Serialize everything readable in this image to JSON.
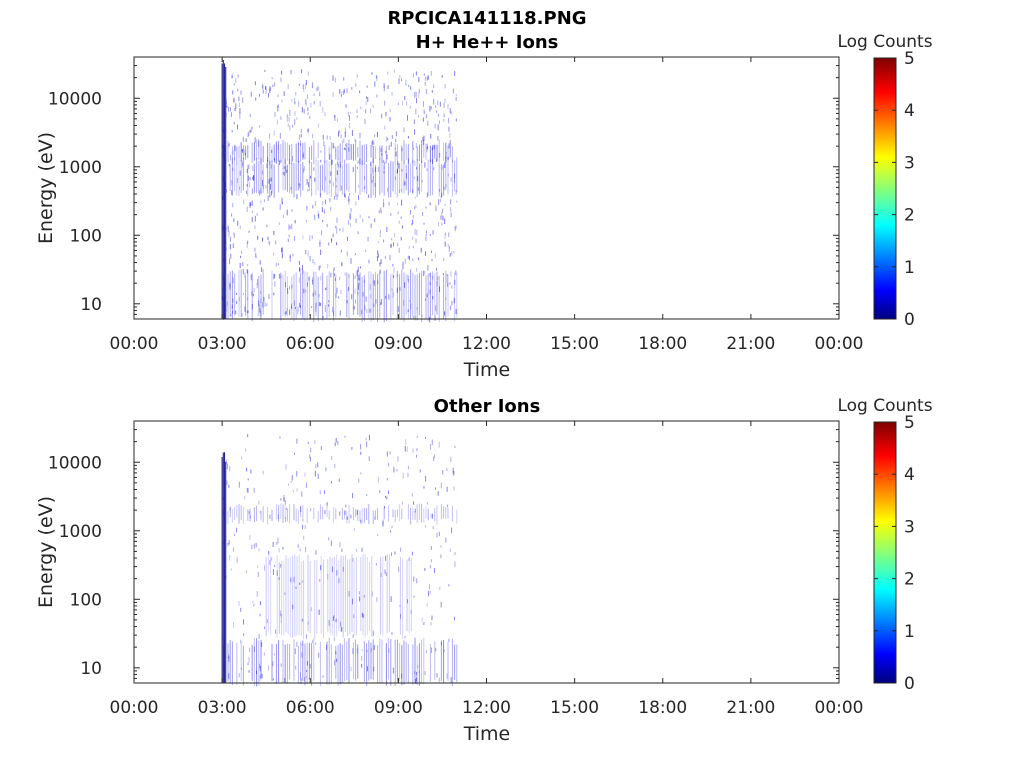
{
  "figure": {
    "title_line1": "RPCICA141118.PNG"
  },
  "colors": {
    "axis": "#262626",
    "spectrogram_low": "#1a1adb",
    "colormap": [
      "#00007f",
      "#0000ff",
      "#00ffff",
      "#ffff00",
      "#ff0000",
      "#7f0000"
    ]
  },
  "chart_data": [
    {
      "type": "heatmap",
      "title": "H+ He++ Ions",
      "xlabel": "Time",
      "ylabel": "Energy (eV)",
      "x_ticks": [
        "00:00",
        "03:00",
        "06:00",
        "09:00",
        "12:00",
        "15:00",
        "18:00",
        "21:00",
        "00:00"
      ],
      "x_range_hours": [
        0,
        24
      ],
      "y_scale": "log",
      "y_range_eV": [
        6,
        40000
      ],
      "y_ticks": [
        "10",
        "100",
        "1000",
        "10000"
      ],
      "y_tick_values": [
        10,
        100,
        1000,
        10000
      ],
      "colorbar": {
        "label": "Log Counts",
        "range": [
          0,
          5
        ],
        "ticks": [
          "0",
          "1",
          "2",
          "3",
          "4",
          "5"
        ]
      },
      "data_time_range_hours": [
        3.0,
        11.0
      ],
      "features": [
        {
          "kind": "burst",
          "start_h": 3.0,
          "end_h": 3.15,
          "e_min": 6,
          "e_max": 40000,
          "level": 1.0
        },
        {
          "kind": "band",
          "start_h": 3.05,
          "end_h": 11.0,
          "e_min": 1200,
          "e_max": 2200,
          "level": 0.6
        },
        {
          "kind": "band",
          "start_h": 3.05,
          "end_h": 11.0,
          "e_min": 400,
          "e_max": 1200,
          "level": 0.45
        },
        {
          "kind": "band",
          "start_h": 3.05,
          "end_h": 11.0,
          "e_min": 6,
          "e_max": 28,
          "level": 0.45
        }
      ],
      "grid": false
    },
    {
      "type": "heatmap",
      "title": "Other Ions",
      "xlabel": "Time",
      "ylabel": "Energy (eV)",
      "x_ticks": [
        "00:00",
        "03:00",
        "06:00",
        "09:00",
        "12:00",
        "15:00",
        "18:00",
        "21:00",
        "00:00"
      ],
      "x_range_hours": [
        0,
        24
      ],
      "y_scale": "log",
      "y_range_eV": [
        6,
        40000
      ],
      "y_ticks": [
        "10",
        "100",
        "1000",
        "10000"
      ],
      "y_tick_values": [
        10,
        100,
        1000,
        10000
      ],
      "colorbar": {
        "label": "Log Counts",
        "range": [
          0,
          5
        ],
        "ticks": [
          "0",
          "1",
          "2",
          "3",
          "4",
          "5"
        ]
      },
      "data_time_range_hours": [
        3.0,
        11.0
      ],
      "features": [
        {
          "kind": "burst",
          "start_h": 3.0,
          "end_h": 3.15,
          "e_min": 6,
          "e_max": 14000,
          "level": 1.0
        },
        {
          "kind": "band",
          "start_h": 3.05,
          "end_h": 11.0,
          "e_min": 1400,
          "e_max": 2200,
          "level": 0.35
        },
        {
          "kind": "band",
          "start_h": 3.05,
          "end_h": 11.0,
          "e_min": 6,
          "e_max": 24,
          "level": 0.55
        },
        {
          "kind": "band",
          "start_h": 4.5,
          "end_h": 9.5,
          "e_min": 30,
          "e_max": 400,
          "level": 0.2
        }
      ],
      "grid": false
    }
  ]
}
